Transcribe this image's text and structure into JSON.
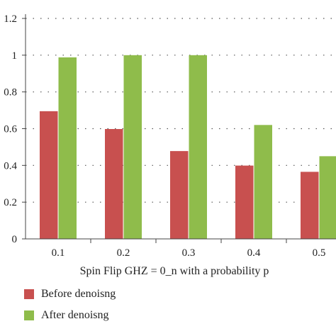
{
  "chart_data": {
    "type": "bar",
    "title": "",
    "xlabel": "Spin Flip GHZ = 0_n with a probability p",
    "ylabel": "",
    "categories": [
      "0.1",
      "0.2",
      "0.3",
      "0.4",
      "0.5"
    ],
    "ylim": [
      0,
      1.2
    ],
    "yticks": [
      "0",
      "0.2",
      "0.4",
      "0.6",
      "0.8",
      "1",
      "1.2"
    ],
    "grid": "horizontal dotted",
    "legend_position": "bottom-left",
    "series": [
      {
        "name": "Before denoisng",
        "color": "#c8504f",
        "values": [
          0.695,
          0.598,
          0.478,
          0.399,
          0.365
        ]
      },
      {
        "name": "After denoisng",
        "color": "#8fbc4b",
        "values": [
          0.988,
          1.0,
          1.0,
          0.62,
          0.45
        ]
      }
    ]
  }
}
